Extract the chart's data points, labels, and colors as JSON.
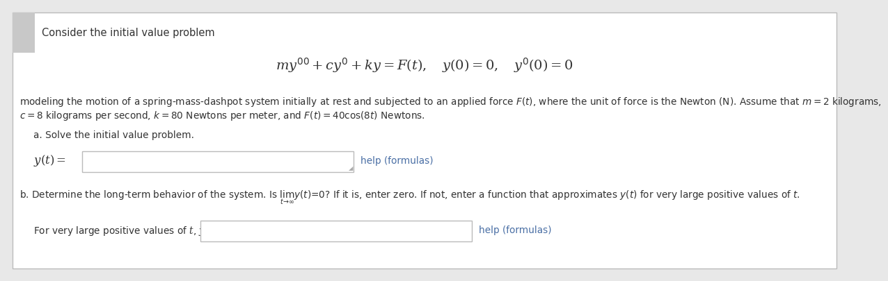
{
  "bg_color": "#e8e8e8",
  "white_bg": "#ffffff",
  "title_text": "Consider the initial value problem",
  "equation_main": "$my'' + cy' + ky = F(t), \\quad y(0) = 0, \\quad y'(0) = 0$",
  "line1": "modeling the motion of a spring-mass-dashpot system initially at rest and subjected to an applied force $F(t)$, where the unit of force is the Newton (N). Assume that $m = 2$ kilograms,",
  "line2": "$c = 8$ kilograms per second, $k = 80$ Newtons per meter, and $F(t) = 40\\cos(8t)$ Newtons.",
  "part_a_label": "a. Solve the initial value problem.",
  "part_a_eq_label": "$y(t) =$",
  "help_formulas": "help (formulas)",
  "part_b_label": "b. Determine the long-term behavior of the system. Is $\\lim_{t \\to \\infty} y(t) = 0$? If it is, enter zero. If not, enter a function that approximates $y(t)$ for very large positive values of $t$.",
  "part_b_eq_label": "For very large positive values of $t$, $y(t) \\approx$",
  "help_color": "#4a6fa5",
  "text_color": "#333333",
  "border_color": "#bbbbbb",
  "accent_color": "#c8c8c8",
  "input_bg": "#ffffff"
}
